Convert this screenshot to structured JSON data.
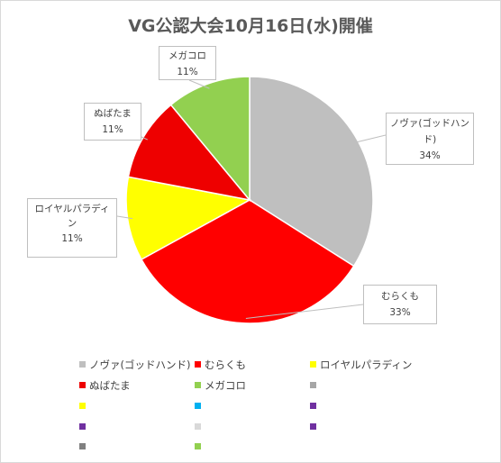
{
  "chart_data": {
    "type": "pie",
    "title": "VG公認大会10月16日(水)開催",
    "slices": [
      {
        "name": "ノヴァ(ゴッドハンド)",
        "value": 34,
        "label": "34%",
        "color": "#bfbfbf"
      },
      {
        "name": "むらくも",
        "value": 33,
        "label": "33%",
        "color": "#ff0000"
      },
      {
        "name": "ロイヤルパラディン",
        "value": 11,
        "label": "11%",
        "color": "#ffff00"
      },
      {
        "name": "ぬばたま",
        "value": 11,
        "label": "11%",
        "color": "#ee0000"
      },
      {
        "name": "メガコロ",
        "value": 11,
        "label": "11%",
        "color": "#92d050"
      }
    ],
    "legend": {
      "position": "bottom",
      "entries": [
        {
          "name": "ノヴァ(ゴッドハンド)",
          "color": "#bfbfbf"
        },
        {
          "name": "むらくも",
          "color": "#ff0000"
        },
        {
          "name": "ロイヤルパラディン",
          "color": "#ffff00"
        },
        {
          "name": "ぬばたま",
          "color": "#ee0000"
        },
        {
          "name": "メガコロ",
          "color": "#92d050"
        },
        {
          "name": "",
          "color": "#a6a6a6"
        },
        {
          "name": "",
          "color": "#ffff00"
        },
        {
          "name": "",
          "color": "#00b0f0"
        },
        {
          "name": "",
          "color": "#7030a0"
        },
        {
          "name": "",
          "color": "#7030a0"
        },
        {
          "name": "",
          "color": "#d9d9d9"
        },
        {
          "name": "",
          "color": "#7030a0"
        },
        {
          "name": "",
          "color": "#808080"
        },
        {
          "name": "",
          "color": "#92d050"
        }
      ]
    }
  }
}
